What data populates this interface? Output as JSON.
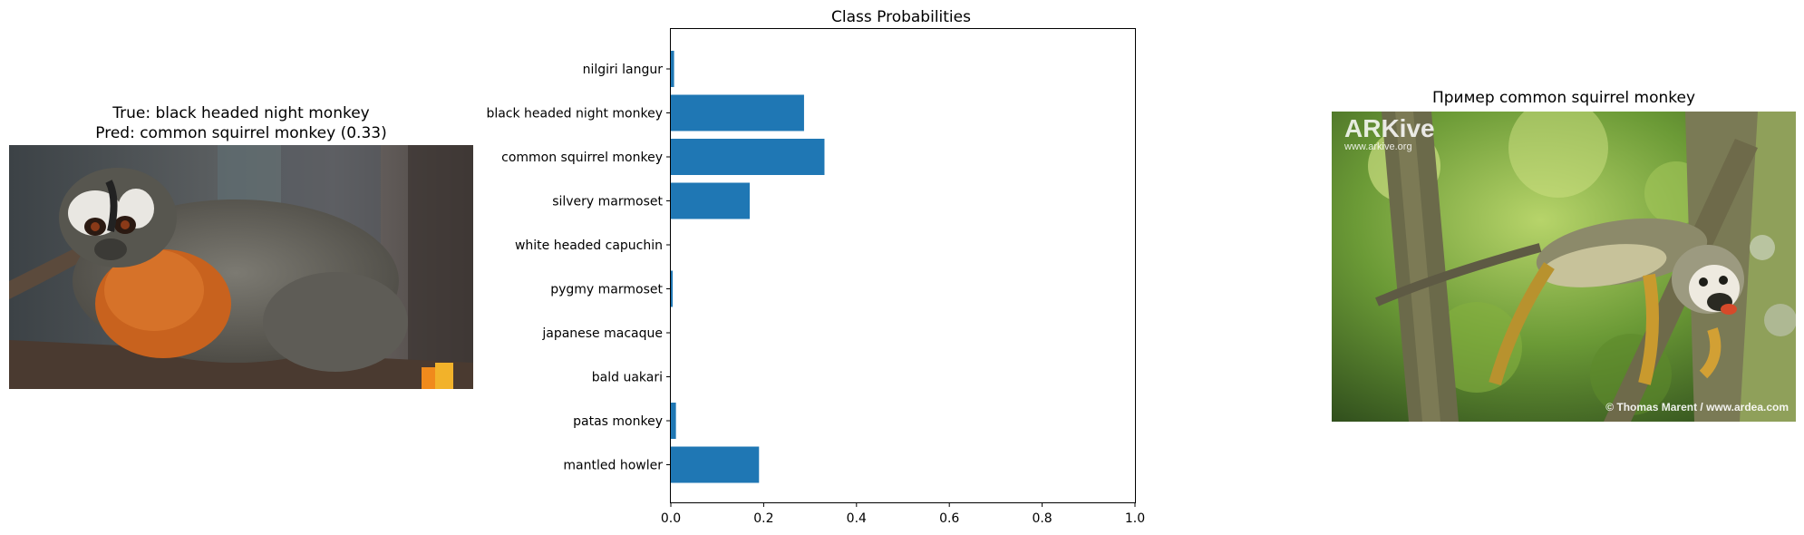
{
  "left_panel": {
    "title_line1": "True: black headed night monkey",
    "title_line2": "Pred: common squirrel monkey (0.33)"
  },
  "right_panel": {
    "title": "Пример common squirrel monkey",
    "watermark_logo": "ARKive",
    "watermark_url": "www.arkive.org",
    "credit": "© Thomas Marent / www.ardea.com"
  },
  "chart_data": {
    "type": "bar",
    "orientation": "horizontal",
    "title": "Class Probabilities",
    "xlabel": "",
    "ylabel": "",
    "xlim": [
      0,
      1
    ],
    "xticks": [
      "0.0",
      "0.2",
      "0.4",
      "0.6",
      "0.8",
      "1.0"
    ],
    "grid": false,
    "bar_color": "#1f77b4",
    "categories": [
      "nilgiri langur",
      "black headed night monkey",
      "common squirrel monkey",
      "silvery marmoset",
      "white headed capuchin",
      "pygmy marmoset",
      "japanese macaque",
      "bald uakari",
      "patas monkey",
      "mantled howler"
    ],
    "values": [
      0.007,
      0.287,
      0.331,
      0.17,
      0.0,
      0.004,
      0.0,
      0.0,
      0.011,
      0.19
    ]
  }
}
